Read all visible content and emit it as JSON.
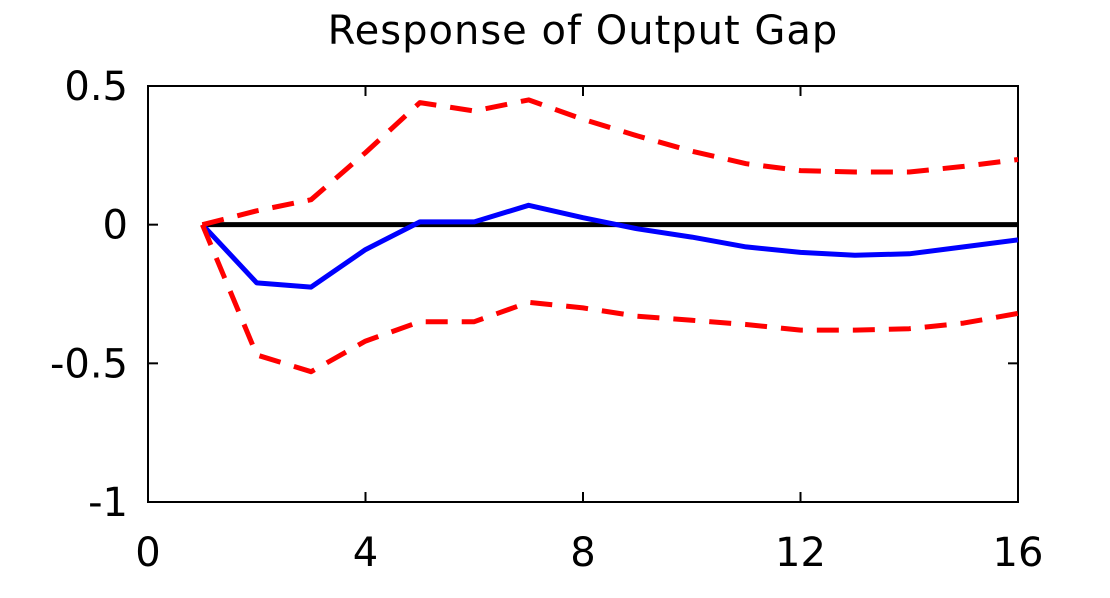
{
  "chart_data": {
    "type": "line",
    "title": "Response of Output Gap",
    "xlabel": "",
    "ylabel": "",
    "xlim": [
      0,
      16
    ],
    "ylim": [
      -1,
      0.5
    ],
    "xticks": [
      0,
      4,
      8,
      12,
      16
    ],
    "xtick_labels": [
      "0",
      "4",
      "8",
      "12",
      "16"
    ],
    "yticks": [
      0.5,
      0,
      -0.5,
      -1
    ],
    "ytick_labels": [
      "0.5",
      "0",
      "-0.5",
      "-1"
    ],
    "grid": false,
    "legend": "none",
    "zero_line": {
      "y": 0,
      "color": "#000000"
    },
    "x": [
      1,
      2,
      3,
      4,
      5,
      6,
      7,
      8,
      9,
      10,
      11,
      12,
      13,
      14,
      15,
      16
    ],
    "series": [
      {
        "style": "solid",
        "color": "#0000ff",
        "values": [
          0.0,
          -0.21,
          -0.225,
          -0.09,
          0.01,
          0.01,
          0.07,
          0.025,
          -0.015,
          -0.045,
          -0.08,
          -0.1,
          -0.11,
          -0.105,
          -0.08,
          -0.055
        ]
      },
      {
        "style": "dashed",
        "color": "#ff0000",
        "values": [
          0.0,
          0.05,
          0.09,
          0.26,
          0.44,
          0.41,
          0.45,
          0.38,
          0.32,
          0.265,
          0.22,
          0.195,
          0.19,
          0.19,
          0.21,
          0.235
        ]
      },
      {
        "style": "dashed",
        "color": "#ff0000",
        "values": [
          0.0,
          -0.47,
          -0.53,
          -0.42,
          -0.35,
          -0.35,
          -0.28,
          -0.3,
          -0.33,
          -0.345,
          -0.36,
          -0.38,
          -0.38,
          -0.375,
          -0.355,
          -0.32
        ]
      }
    ]
  }
}
